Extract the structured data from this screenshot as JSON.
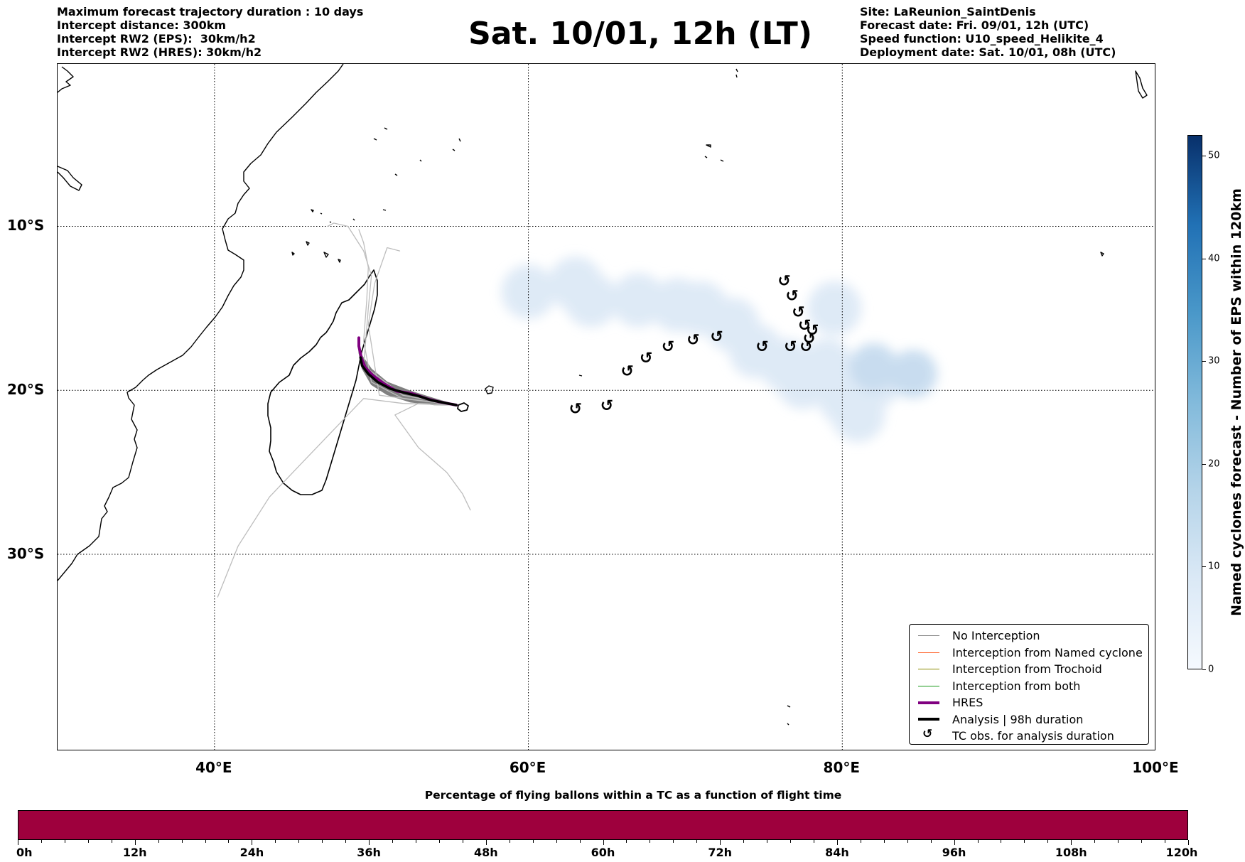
{
  "header_left": [
    "Maximum forecast trajectory duration : 10 days",
    "Intercept distance: 300km",
    "Intercept RW2 (EPS):  30km/h2",
    "Intercept RW2 (HRES): 30km/h2"
  ],
  "title": "Sat. 10/01, 12h (LT)",
  "header_right": [
    "Site: LaReunion_SaintDenis",
    "Forecast date: Fri. 09/01, 12h (UTC)",
    "Speed function: U10_speed_Helikite_4",
    "Deployment date: Sat. 10/01, 08h (UTC)"
  ],
  "map": {
    "lon_range": [
      30,
      100
    ],
    "lat_range": [
      -42,
      -0.1
    ],
    "lon_ticks": [
      {
        "value": 40,
        "label": "40°E"
      },
      {
        "value": 60,
        "label": "60°E"
      },
      {
        "value": 80,
        "label": "80°E"
      },
      {
        "value": 100,
        "label": "100°E"
      }
    ],
    "lat_ticks": [
      {
        "value": -10,
        "label": "10°S"
      },
      {
        "value": -20,
        "label": "20°S"
      },
      {
        "value": -30,
        "label": "30°S"
      }
    ],
    "tc_obs_symbol": "↺",
    "tc_obs_positions": [
      [
        63,
        -21.1
      ],
      [
        65,
        -20.9
      ],
      [
        66.3,
        -18.8
      ],
      [
        67.5,
        -18
      ],
      [
        68.9,
        -17.3
      ],
      [
        70.5,
        -16.9
      ],
      [
        72,
        -16.7
      ],
      [
        74.9,
        -17.3
      ],
      [
        76.7,
        -17.3
      ],
      [
        77.7,
        -17.3
      ],
      [
        77.9,
        -16.8
      ],
      [
        78.1,
        -16.3
      ],
      [
        77.6,
        -16
      ],
      [
        77.2,
        -15.2
      ],
      [
        76.8,
        -14.2
      ],
      [
        76.3,
        -13.3
      ]
    ],
    "eps_density_blobs": [
      [
        60,
        -14
      ],
      [
        63,
        -13.5
      ],
      [
        64,
        -14.5
      ],
      [
        67,
        -14.5
      ],
      [
        69.5,
        -14.8
      ],
      [
        71,
        -15
      ],
      [
        73,
        -16
      ],
      [
        74.5,
        -17.6
      ],
      [
        76.5,
        -18.5
      ],
      [
        77.5,
        -19.5
      ],
      [
        79,
        -18.5
      ],
      [
        79.5,
        -15
      ],
      [
        80.2,
        -20.5
      ],
      [
        81,
        -21.5
      ],
      [
        82,
        -19.5
      ],
      [
        84.5,
        -19
      ],
      [
        82,
        -18.6
      ]
    ],
    "colors": {
      "hres": "#800080",
      "analysis": "#000000",
      "ensemble": "#808080",
      "density": "#dde9f6"
    }
  },
  "legend": [
    {
      "label": "No Interception",
      "color": "#808080",
      "kind": "line",
      "width": 1.2
    },
    {
      "label": "Interception from Named cyclone",
      "color": "#ff5a1f",
      "kind": "line",
      "width": 1.2
    },
    {
      "label": "Interception from Trochoid",
      "color": "#8a8a00",
      "kind": "line",
      "width": 1.2
    },
    {
      "label": "Interception from both",
      "color": "#1a9a1a",
      "kind": "line",
      "width": 1.2
    },
    {
      "label": "HRES",
      "color": "#800080",
      "kind": "line",
      "width": 4
    },
    {
      "label": "Analysis | 98h duration",
      "color": "#000000",
      "kind": "line",
      "width": 4
    },
    {
      "label": "TC obs. for analysis duration",
      "color": "#000000",
      "kind": "glyph"
    }
  ],
  "colorbar_vertical": {
    "label": "Named cyclones forecast - Number of EPS within 120km",
    "min": 0,
    "max": 52,
    "ticks": [
      0,
      10,
      20,
      30,
      40,
      50
    ]
  },
  "colorbar_horizontal": {
    "title": "Percentage of flying ballons within a TC as a function of flight time",
    "color": "#9e003d",
    "major_ticks": [
      "0h",
      "12h",
      "24h",
      "36h",
      "48h",
      "60h",
      "72h",
      "84h",
      "96h",
      "108h",
      "120h"
    ],
    "minor_per_major": 4
  }
}
